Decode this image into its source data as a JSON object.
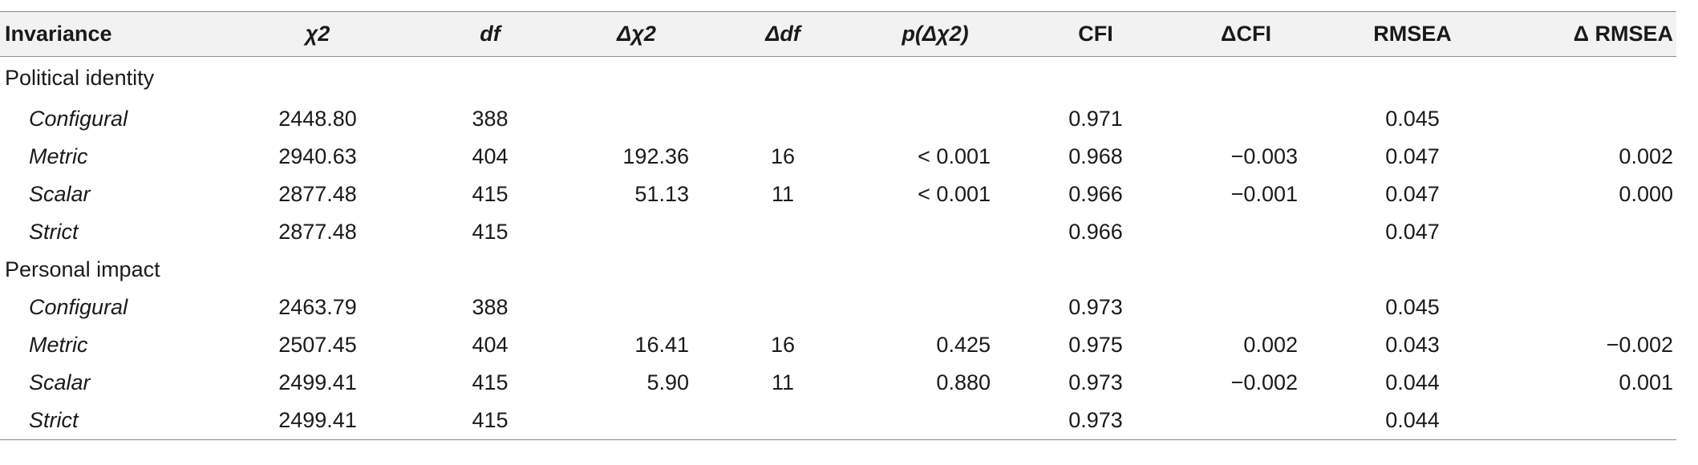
{
  "headers": {
    "invariance": "Invariance",
    "chi2": "χ2",
    "df": "df",
    "delta_chi2": "Δχ2",
    "delta_df": "Δdf",
    "p_delta_chi2": "p(Δχ2)",
    "cfi": "CFI",
    "delta_cfi": "ΔCFI",
    "rmsea": "RMSEA",
    "delta_rmsea": "Δ RMSEA"
  },
  "groups": [
    {
      "label": "Political identity",
      "rows": [
        {
          "model": "Configural",
          "chi2": "2448.80",
          "df": "388",
          "delta_chi2": "",
          "delta_df": "",
          "p": "",
          "cfi": "0.971",
          "delta_cfi": "",
          "rmsea": "0.045",
          "delta_rmsea": ""
        },
        {
          "model": "Metric",
          "chi2": "2940.63",
          "df": "404",
          "delta_chi2": "192.36",
          "delta_df": "16",
          "p": "< 0.001",
          "cfi": "0.968",
          "delta_cfi": "−0.003",
          "rmsea": "0.047",
          "delta_rmsea": "0.002"
        },
        {
          "model": "Scalar",
          "chi2": "2877.48",
          "df": "415",
          "delta_chi2": "51.13",
          "delta_df": "11",
          "p": "< 0.001",
          "cfi": "0.966",
          "delta_cfi": "−0.001",
          "rmsea": "0.047",
          "delta_rmsea": "0.000"
        },
        {
          "model": "Strict",
          "chi2": "2877.48",
          "df": "415",
          "delta_chi2": "",
          "delta_df": "",
          "p": "",
          "cfi": "0.966",
          "delta_cfi": "",
          "rmsea": "0.047",
          "delta_rmsea": ""
        }
      ]
    },
    {
      "label": "Personal impact",
      "rows": [
        {
          "model": "Configural",
          "chi2": "2463.79",
          "df": "388",
          "delta_chi2": "",
          "delta_df": "",
          "p": "",
          "cfi": "0.973",
          "delta_cfi": "",
          "rmsea": "0.045",
          "delta_rmsea": ""
        },
        {
          "model": "Metric",
          "chi2": "2507.45",
          "df": "404",
          "delta_chi2": "16.41",
          "delta_df": "16",
          "p": "0.425",
          "cfi": "0.975",
          "delta_cfi": "0.002",
          "rmsea": "0.043",
          "delta_rmsea": "−0.002"
        },
        {
          "model": "Scalar",
          "chi2": "2499.41",
          "df": "415",
          "delta_chi2": "5.90",
          "delta_df": "11",
          "p": "0.880",
          "cfi": "0.973",
          "delta_cfi": "−0.002",
          "rmsea": "0.044",
          "delta_rmsea": "0.001"
        },
        {
          "model": "Strict",
          "chi2": "2499.41",
          "df": "415",
          "delta_chi2": "",
          "delta_df": "",
          "p": "",
          "cfi": "0.973",
          "delta_cfi": "",
          "rmsea": "0.044",
          "delta_rmsea": ""
        }
      ]
    }
  ]
}
